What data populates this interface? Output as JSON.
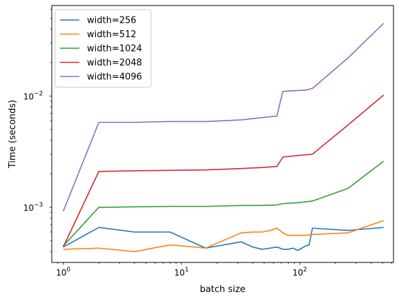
{
  "chart_data": {
    "type": "line",
    "title": "",
    "xlabel": "batch size",
    "ylabel": "Time (seconds)",
    "xscale": "log",
    "yscale": "log",
    "xlim": [
      0.8,
      620
    ],
    "ylim": [
      0.00032,
      0.065
    ],
    "grid": false,
    "legend_position": "top-left",
    "x_ticks": [
      {
        "value": 1,
        "base": "10",
        "exp": "0"
      },
      {
        "value": 10,
        "base": "10",
        "exp": "1"
      },
      {
        "value": 100,
        "base": "10",
        "exp": "2"
      }
    ],
    "y_ticks": [
      {
        "value": 0.001,
        "base": "10",
        "exp": "−3"
      },
      {
        "value": 0.01,
        "base": "10",
        "exp": "−2"
      }
    ],
    "series": [
      {
        "name": "width=256",
        "color": "#1f77b4",
        "points": [
          [
            1,
            0.00044
          ],
          [
            2,
            0.00066
          ],
          [
            4,
            0.0006
          ],
          [
            8,
            0.0006
          ],
          [
            16,
            0.00043
          ],
          [
            32,
            0.00049
          ],
          [
            40,
            0.00044
          ],
          [
            48,
            0.00042
          ],
          [
            56,
            0.00043
          ],
          [
            64,
            0.00044
          ],
          [
            72,
            0.00042
          ],
          [
            80,
            0.00042
          ],
          [
            88,
            0.00043
          ],
          [
            96,
            0.00041
          ],
          [
            104,
            0.00043
          ],
          [
            112,
            0.00045
          ],
          [
            120,
            0.00046
          ],
          [
            128,
            0.00065
          ],
          [
            256,
            0.00062
          ],
          [
            512,
            0.00066
          ]
        ]
      },
      {
        "name": "width=512",
        "color": "#ff7f0e",
        "points": [
          [
            1,
            0.00042
          ],
          [
            2,
            0.00043
          ],
          [
            4,
            0.0004
          ],
          [
            8,
            0.00046
          ],
          [
            16,
            0.00043
          ],
          [
            32,
            0.00059
          ],
          [
            40,
            0.0006
          ],
          [
            48,
            0.0006
          ],
          [
            56,
            0.00062
          ],
          [
            64,
            0.00065
          ],
          [
            72,
            0.00059
          ],
          [
            80,
            0.00056
          ],
          [
            96,
            0.00056
          ],
          [
            112,
            0.00056
          ],
          [
            128,
            0.00057
          ],
          [
            256,
            0.00059
          ],
          [
            512,
            0.00076
          ]
        ]
      },
      {
        "name": "width=1024",
        "color": "#2ca02c",
        "points": [
          [
            1,
            0.00045
          ],
          [
            2,
            0.001
          ],
          [
            4,
            0.00101
          ],
          [
            8,
            0.00102
          ],
          [
            16,
            0.00102
          ],
          [
            32,
            0.00104
          ],
          [
            48,
            0.00104
          ],
          [
            64,
            0.00105
          ],
          [
            72,
            0.00108
          ],
          [
            96,
            0.0011
          ],
          [
            112,
            0.00112
          ],
          [
            128,
            0.00114
          ],
          [
            256,
            0.00148
          ],
          [
            512,
            0.0026
          ]
        ]
      },
      {
        "name": "width=2048",
        "color": "#d62728",
        "points": [
          [
            1,
            0.00044
          ],
          [
            2,
            0.0021
          ],
          [
            4,
            0.00213
          ],
          [
            8,
            0.00215
          ],
          [
            16,
            0.00217
          ],
          [
            32,
            0.00223
          ],
          [
            48,
            0.00228
          ],
          [
            64,
            0.00233
          ],
          [
            72,
            0.00283
          ],
          [
            96,
            0.00292
          ],
          [
            112,
            0.00296
          ],
          [
            128,
            0.003
          ],
          [
            256,
            0.0055
          ],
          [
            512,
            0.0102
          ]
        ]
      },
      {
        "name": "width=4096",
        "color": "#9467bd",
        "points": [
          [
            1,
            0.00092
          ],
          [
            2,
            0.0058
          ],
          [
            4,
            0.0058
          ],
          [
            8,
            0.0059
          ],
          [
            16,
            0.0059
          ],
          [
            32,
            0.0061
          ],
          [
            48,
            0.0064
          ],
          [
            64,
            0.0066
          ],
          [
            72,
            0.011
          ],
          [
            96,
            0.0112
          ],
          [
            112,
            0.0113
          ],
          [
            128,
            0.0117
          ],
          [
            256,
            0.022
          ],
          [
            512,
            0.045
          ]
        ]
      }
    ]
  }
}
